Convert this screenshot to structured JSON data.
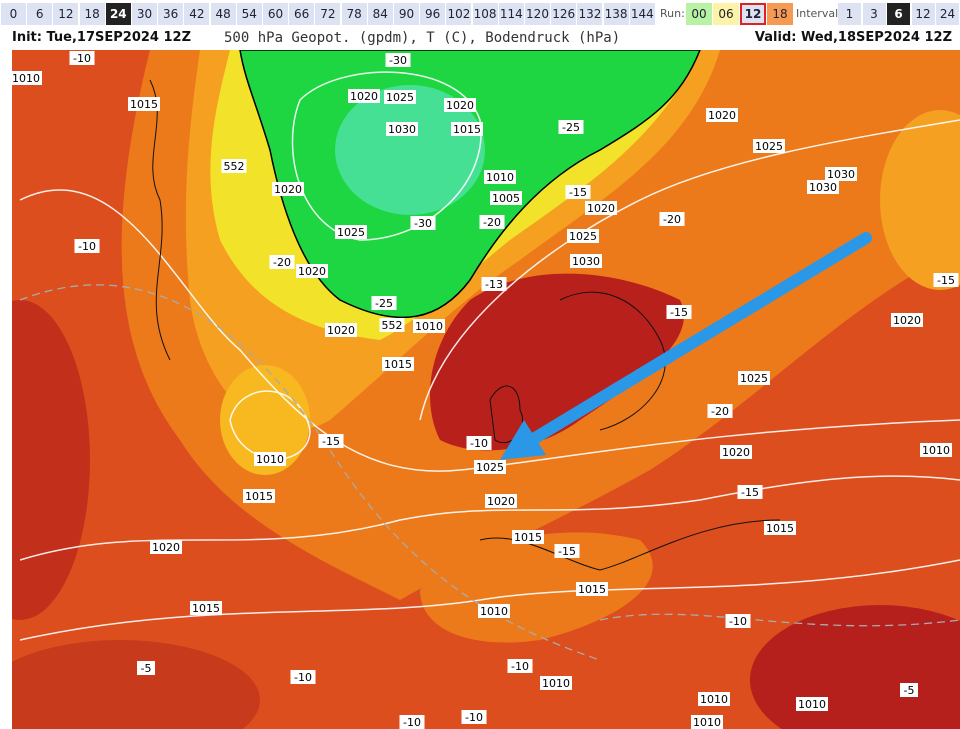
{
  "toolbar": {
    "hours": [
      "0",
      "6",
      "12",
      "18",
      "24",
      "30",
      "36",
      "42",
      "48",
      "54",
      "60",
      "66",
      "72",
      "78",
      "84",
      "90",
      "96",
      "102",
      "108",
      "114",
      "120",
      "126",
      "132",
      "138",
      "144"
    ],
    "selected_hour": "24",
    "run_label": "Run:",
    "runs": [
      "00",
      "06",
      "12",
      "18"
    ],
    "selected_run": "12",
    "interval_label": "Interval",
    "intervals": [
      "1",
      "3",
      "6",
      "12",
      "24"
    ],
    "selected_interval": "6"
  },
  "header": {
    "init": "Init: Tue,17SEP2024 12Z",
    "title": "500 hPa Geopot. (gpdm), T (C), Bodendruck (hPa)",
    "valid": "Valid: Wed,18SEP2024 12Z"
  },
  "map": {
    "labels": [
      "1010",
      "-10",
      "-30",
      "1015",
      "1020",
      "1025",
      "1020",
      "1030",
      "1015",
      "-25",
      "1020",
      "1025",
      "552",
      "1020",
      "1010",
      "1005",
      "-15",
      "1020",
      "-20",
      "1030",
      "1030",
      "1025",
      "-30",
      "-20",
      "1025",
      "-10",
      "-20",
      "1020",
      "1030",
      "-13",
      "-15",
      "-25",
      "552",
      "1010",
      "1020",
      "-15",
      "1020",
      "1015",
      "1025",
      "-20",
      "-10",
      "1025",
      "1010",
      "-15",
      "1020",
      "1010",
      "-15",
      "1015",
      "1020",
      "1015",
      "-15",
      "1015",
      "1020",
      "1015",
      "1015",
      "1010",
      "-10",
      "-10",
      "-5",
      "-10",
      "1010",
      "1010",
      "1010",
      "-5",
      "1010",
      "-10",
      "-10"
    ]
  }
}
